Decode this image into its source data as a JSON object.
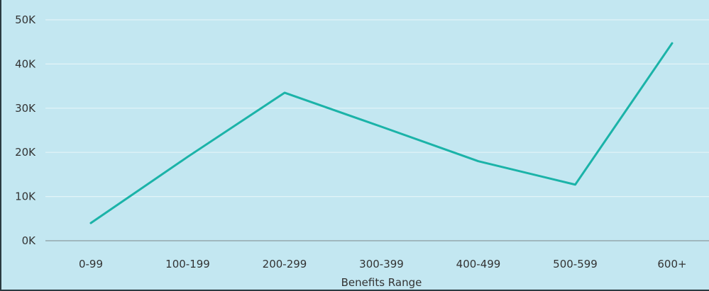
{
  "chart_data": {
    "type": "line",
    "title": "",
    "xlabel": "Benefits Range",
    "ylabel": "",
    "categories": [
      "0-99",
      "100-199",
      "200-299",
      "300-399",
      "400-499",
      "500-599",
      "600+"
    ],
    "series": [
      {
        "values": [
          4000,
          19000,
          33500,
          25800,
          18000,
          12700,
          44700
        ]
      }
    ],
    "ylim": [
      0,
      50000
    ],
    "yticks": [
      {
        "value": 0,
        "label": "0K"
      },
      {
        "value": 10000,
        "label": "10K"
      },
      {
        "value": 20000,
        "label": "20K"
      },
      {
        "value": 30000,
        "label": "30K"
      },
      {
        "value": 40000,
        "label": "40K"
      },
      {
        "value": 50000,
        "label": "50K"
      }
    ],
    "grid": true,
    "legend": "none",
    "colors": {
      "background": "#c3e7f1",
      "line": "#1bb3a8",
      "grid": "#e3f4f8",
      "axis": "#8a9aa0"
    }
  }
}
